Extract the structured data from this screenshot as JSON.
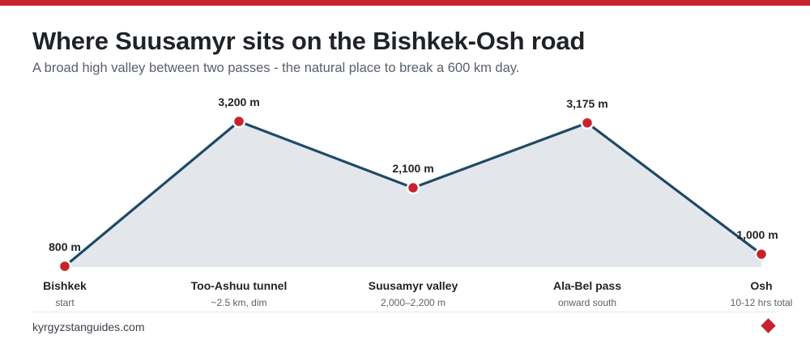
{
  "header": {
    "title": "Where Suusamyr sits on the Bishkek-Osh road",
    "subtitle": "A broad high valley between two passes - the natural place to break a 600 km day."
  },
  "chart_data": {
    "type": "area",
    "categories": [
      "Bishkek",
      "Too-Ashuu tunnel",
      "Suusamyr valley",
      "Ala-Bel pass",
      "Osh"
    ],
    "sublabels": [
      "start",
      "~2.5 km, dim",
      "2,000–2,200 m",
      "onward south",
      "10-12 hrs total"
    ],
    "values": [
      800,
      3200,
      2100,
      3175,
      1000
    ],
    "value_labels": [
      "800 m",
      "3,200 m",
      "2,100 m",
      "3,175 m",
      "1,000 m"
    ],
    "unit": "m",
    "ylim": [
      800,
      3200
    ],
    "grid": false,
    "legend": "none"
  },
  "footer": {
    "site": "kyrgyzstanguides.com",
    "mark_icon": "diamond-icon"
  },
  "colors": {
    "accent": "#c8232c",
    "line": "#1f4a66",
    "fill": "#e3e7ec",
    "title": "#1f2328",
    "muted": "#59616b"
  }
}
